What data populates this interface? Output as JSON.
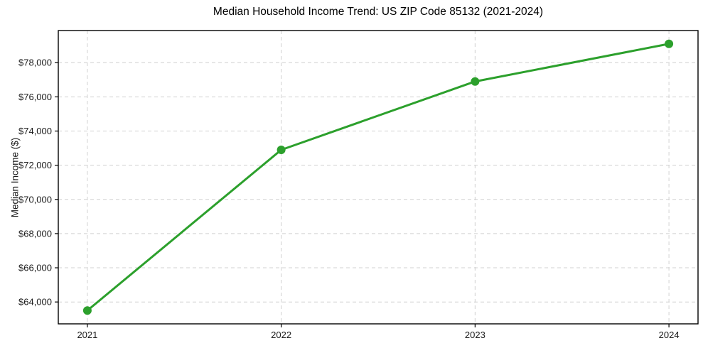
{
  "figure": {
    "background_color": "#ffffff"
  },
  "chart_data": {
    "type": "line",
    "title": "Median Household Income Trend: US ZIP Code 85132 (2021-2024)",
    "ylabel": "Median Income ($)",
    "xlabel": "",
    "x": [
      2021,
      2022,
      2023,
      2024
    ],
    "series": [
      {
        "values": [
          63500,
          72900,
          76900,
          79100
        ],
        "color": "#2ca02c",
        "marker": "circle"
      }
    ],
    "x_ticks": [
      {
        "value": 2021,
        "label": "2021"
      },
      {
        "value": 2022,
        "label": "2022"
      },
      {
        "value": 2023,
        "label": "2023"
      },
      {
        "value": 2024,
        "label": "2024"
      }
    ],
    "y_ticks": [
      {
        "value": 64000,
        "label": "$64,000"
      },
      {
        "value": 66000,
        "label": "$66,000"
      },
      {
        "value": 68000,
        "label": "$68,000"
      },
      {
        "value": 70000,
        "label": "$70,000"
      },
      {
        "value": 72000,
        "label": "$72,000"
      },
      {
        "value": 74000,
        "label": "$74,000"
      },
      {
        "value": 76000,
        "label": "$76,000"
      },
      {
        "value": 78000,
        "label": "$78,000"
      }
    ],
    "xlim": [
      2020.85,
      2024.15
    ],
    "ylim": [
      62720,
      79880
    ],
    "grid": true,
    "grid_style": "dashed",
    "grid_color": "#d0d0d0",
    "spine_color": "#000000",
    "text_color": "#1a1a1a"
  }
}
